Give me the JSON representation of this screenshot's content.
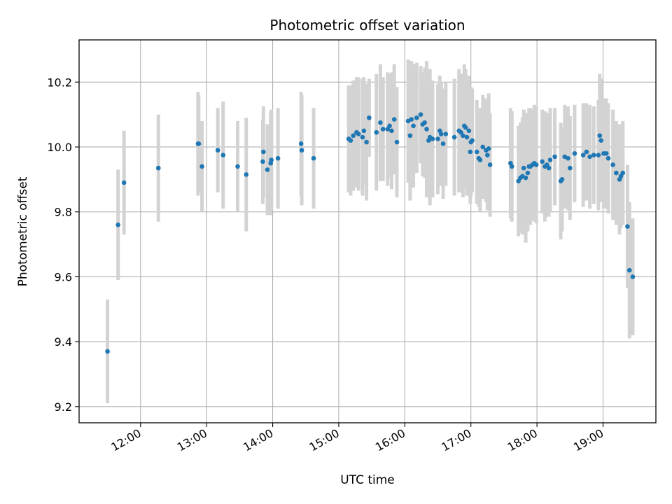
{
  "chart_data": {
    "type": "scatter",
    "title": "Photometric offset variation",
    "xlabel": "UTC time",
    "ylabel": "Photometric offset",
    "x_unit": "hours UTC",
    "xlim": [
      11.07,
      19.8
    ],
    "ylim": [
      9.15,
      10.33
    ],
    "x_ticks": [
      {
        "value": 12,
        "label": "12:00"
      },
      {
        "value": 13,
        "label": "13:00"
      },
      {
        "value": 14,
        "label": "14:00"
      },
      {
        "value": 15,
        "label": "15:00"
      },
      {
        "value": 16,
        "label": "16:00"
      },
      {
        "value": 17,
        "label": "17:00"
      },
      {
        "value": 18,
        "label": "18:00"
      },
      {
        "value": 19,
        "label": "19:00"
      }
    ],
    "y_ticks": [
      {
        "value": 9.2,
        "label": "9.2"
      },
      {
        "value": 9.4,
        "label": "9.4"
      },
      {
        "value": 9.6,
        "label": "9.6"
      },
      {
        "value": 9.8,
        "label": "9.8"
      },
      {
        "value": 10.0,
        "label": "10.0"
      },
      {
        "value": 10.2,
        "label": "10.2"
      }
    ],
    "grid": true,
    "marker_color": "#1f77b4",
    "errorbar_color": "#d3d3d3",
    "series": [
      {
        "points": [
          [
            11.5,
            9.37,
            0.16
          ],
          [
            11.66,
            9.76,
            0.17
          ],
          [
            11.75,
            9.89,
            0.16
          ],
          [
            12.27,
            9.935,
            0.165
          ],
          [
            12.87,
            10.01,
            0.16
          ],
          [
            12.88,
            10.01,
            0.15
          ],
          [
            12.93,
            9.94,
            0.14
          ],
          [
            13.17,
            9.99,
            0.13
          ],
          [
            13.25,
            9.975,
            0.165
          ],
          [
            13.47,
            9.94,
            0.14
          ],
          [
            13.6,
            9.915,
            0.175
          ],
          [
            13.85,
            9.955,
            0.13
          ],
          [
            13.86,
            9.985,
            0.14
          ],
          [
            13.92,
            9.93,
            0.14
          ],
          [
            13.97,
            9.95,
            0.16
          ],
          [
            13.98,
            9.96,
            0.155
          ],
          [
            14.08,
            9.965,
            0.155
          ],
          [
            14.43,
            10.01,
            0.16
          ],
          [
            14.44,
            9.99,
            0.17
          ],
          [
            14.62,
            9.965,
            0.155
          ],
          [
            15.15,
            10.025,
            0.165
          ],
          [
            15.18,
            10.02,
            0.17
          ],
          [
            15.22,
            10.035,
            0.17
          ],
          [
            15.27,
            10.045,
            0.17
          ],
          [
            15.3,
            10.04,
            0.175
          ],
          [
            15.36,
            10.03,
            0.18
          ],
          [
            15.38,
            10.05,
            0.165
          ],
          [
            15.42,
            10.015,
            0.18
          ],
          [
            15.46,
            10.09,
            0.12
          ],
          [
            15.57,
            10.045,
            0.18
          ],
          [
            15.63,
            10.075,
            0.18
          ],
          [
            15.67,
            10.055,
            0.16
          ],
          [
            15.74,
            10.055,
            0.175
          ],
          [
            15.77,
            10.065,
            0.16
          ],
          [
            15.8,
            10.05,
            0.18
          ],
          [
            15.84,
            10.085,
            0.17
          ],
          [
            15.88,
            10.015,
            0.17
          ],
          [
            16.05,
            10.08,
            0.19
          ],
          [
            16.08,
            10.035,
            0.2
          ],
          [
            16.1,
            10.085,
            0.18
          ],
          [
            16.13,
            10.065,
            0.19
          ],
          [
            16.18,
            10.09,
            0.17
          ],
          [
            16.24,
            10.1,
            0.15
          ],
          [
            16.27,
            10.07,
            0.16
          ],
          [
            16.3,
            10.075,
            0.17
          ],
          [
            16.33,
            10.055,
            0.21
          ],
          [
            16.36,
            10.02,
            0.17
          ],
          [
            16.38,
            10.03,
            0.21
          ],
          [
            16.42,
            10.025,
            0.18
          ],
          [
            16.5,
            10.025,
            0.17
          ],
          [
            16.53,
            10.05,
            0.17
          ],
          [
            16.55,
            10.04,
            0.16
          ],
          [
            16.58,
            10.01,
            0.17
          ],
          [
            16.62,
            10.04,
            0.16
          ],
          [
            16.75,
            10.03,
            0.18
          ],
          [
            16.82,
            10.05,
            0.19
          ],
          [
            16.85,
            10.045,
            0.18
          ],
          [
            16.88,
            10.035,
            0.19
          ],
          [
            16.9,
            10.065,
            0.19
          ],
          [
            16.92,
            10.06,
            0.18
          ],
          [
            16.94,
            10.03,
            0.18
          ],
          [
            16.97,
            10.05,
            0.17
          ],
          [
            16.99,
            9.985,
            0.16
          ],
          [
            17.0,
            10.015,
            0.17
          ],
          [
            17.02,
            10.02,
            0.16
          ],
          [
            17.09,
            9.985,
            0.16
          ],
          [
            17.12,
            9.965,
            0.15
          ],
          [
            17.14,
            9.96,
            0.16
          ],
          [
            17.18,
            10.0,
            0.16
          ],
          [
            17.23,
            9.99,
            0.16
          ],
          [
            17.25,
            9.975,
            0.17
          ],
          [
            17.27,
            9.995,
            0.17
          ],
          [
            17.29,
            9.945,
            0.16
          ],
          [
            17.6,
            9.95,
            0.17
          ],
          [
            17.62,
            9.94,
            0.17
          ],
          [
            17.72,
            9.895,
            0.17
          ],
          [
            17.75,
            9.905,
            0.17
          ],
          [
            17.78,
            9.91,
            0.18
          ],
          [
            17.8,
            9.935,
            0.18
          ],
          [
            17.83,
            9.905,
            0.2
          ],
          [
            17.86,
            9.92,
            0.18
          ],
          [
            17.88,
            9.94,
            0.18
          ],
          [
            17.9,
            9.94,
            0.18
          ],
          [
            17.93,
            9.945,
            0.17
          ],
          [
            17.96,
            9.95,
            0.18
          ],
          [
            17.99,
            9.945,
            0.18
          ],
          [
            18.08,
            9.955,
            0.16
          ],
          [
            18.12,
            9.94,
            0.17
          ],
          [
            18.15,
            9.945,
            0.16
          ],
          [
            18.18,
            9.935,
            0.15
          ],
          [
            18.2,
            9.96,
            0.16
          ],
          [
            18.27,
            9.97,
            0.15
          ],
          [
            18.36,
            9.895,
            0.18
          ],
          [
            18.38,
            9.9,
            0.16
          ],
          [
            18.42,
            9.97,
            0.16
          ],
          [
            18.47,
            9.965,
            0.16
          ],
          [
            18.5,
            9.935,
            0.16
          ],
          [
            18.57,
            9.98,
            0.15
          ],
          [
            18.7,
            9.975,
            0.16
          ],
          [
            18.75,
            9.985,
            0.15
          ],
          [
            18.8,
            9.97,
            0.16
          ],
          [
            18.86,
            9.975,
            0.15
          ],
          [
            18.93,
            9.975,
            0.17
          ],
          [
            18.95,
            10.035,
            0.19
          ],
          [
            18.97,
            10.02,
            0.19
          ],
          [
            19.01,
            9.98,
            0.17
          ],
          [
            19.05,
            9.98,
            0.17
          ],
          [
            19.08,
            9.965,
            0.17
          ],
          [
            19.15,
            9.945,
            0.17
          ],
          [
            19.2,
            9.92,
            0.16
          ],
          [
            19.25,
            9.9,
            0.17
          ],
          [
            19.27,
            9.91,
            0.16
          ],
          [
            19.3,
            9.92,
            0.16
          ],
          [
            19.37,
            9.755,
            0.19
          ],
          [
            19.4,
            9.62,
            0.21
          ],
          [
            19.45,
            9.6,
            0.18
          ]
        ]
      }
    ]
  }
}
